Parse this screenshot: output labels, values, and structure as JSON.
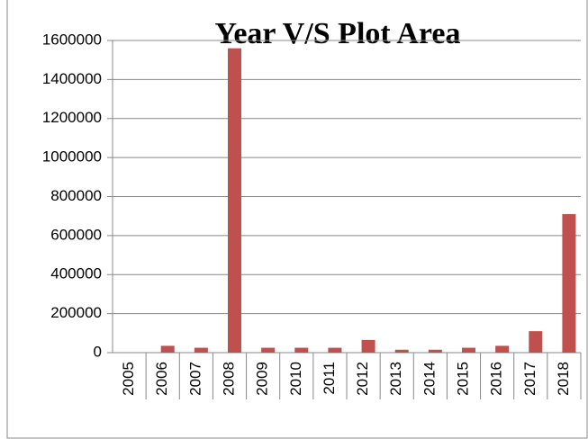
{
  "chart_data": {
    "type": "bar",
    "title": "Year V/S Plot Area",
    "categories": [
      "2005",
      "2006",
      "2007",
      "2008",
      "2009",
      "2010",
      "2011",
      "2012",
      "2013",
      "2014",
      "2015",
      "2016",
      "2017",
      "2018"
    ],
    "values": [
      0,
      35000,
      25000,
      1560000,
      25000,
      25000,
      25000,
      65000,
      15000,
      15000,
      25000,
      35000,
      110000,
      710000
    ],
    "color": "#c0504d",
    "ylim": [
      0,
      1600000
    ],
    "yticks": [
      0,
      200000,
      400000,
      600000,
      800000,
      1000000,
      1200000,
      1400000,
      1600000
    ],
    "grid": true
  }
}
